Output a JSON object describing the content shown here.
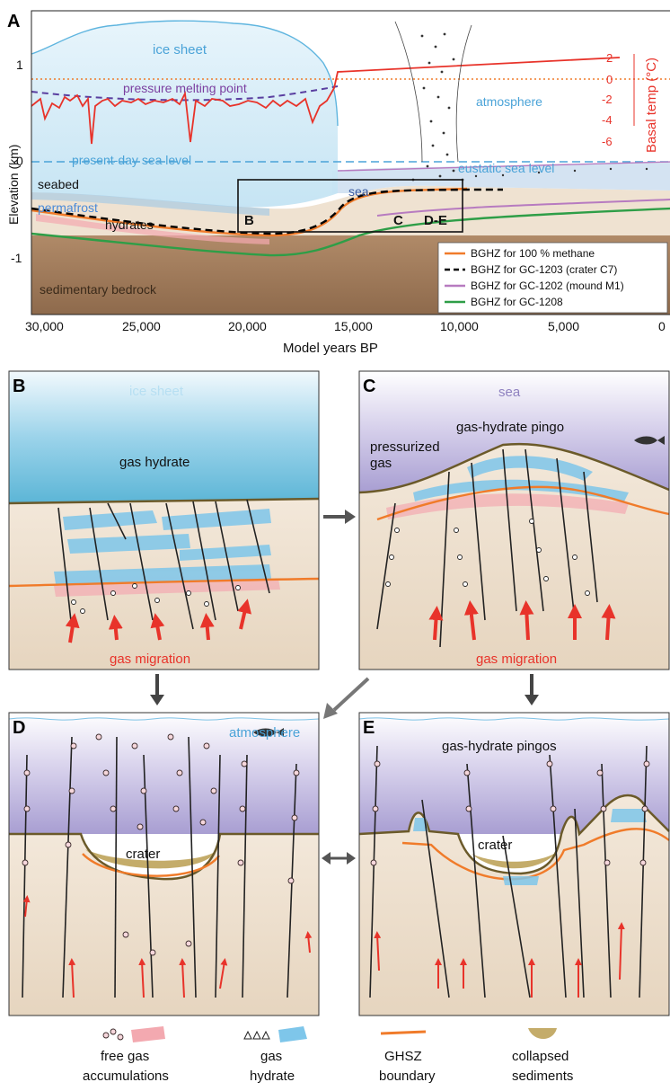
{
  "panel_a": {
    "letter": "A",
    "labels": {
      "ice_sheet": "ice sheet",
      "pressure_melting_point": "pressure melting point",
      "atmosphere": "atmosphere",
      "present_day_sea_level": "present-day sea level",
      "eustatic_sea_level": "eustatic sea level",
      "seabed": "seabed",
      "sea": "sea",
      "permafrost": "permafrost",
      "hydrates": "hydrates",
      "sedimentary_bedrock": "sedimentary bedrock",
      "box_b": "B",
      "box_c": "C",
      "box_de": "D-E"
    },
    "y_axis_title": "Elevation (km)",
    "y_ticks": [
      "1",
      "0",
      "-1"
    ],
    "right_axis_title": "Basal temp (°C)",
    "right_ticks": [
      "2",
      "0",
      "-2",
      "-4",
      "-6"
    ],
    "x_axis_title": "Model years BP",
    "x_ticks": [
      "30,000",
      "25,000",
      "20,000",
      "15,000",
      "10,000",
      "5,000",
      "0"
    ],
    "legend": [
      {
        "label": "BGHZ for 100 % methane",
        "color": "#f07b2a",
        "style": "solid"
      },
      {
        "label": "BGHZ for GC-1203 (crater C7)",
        "color": "#000000",
        "style": "dashed"
      },
      {
        "label": "BGHZ for GC-1202 (mound M1)",
        "color": "#b77bc0",
        "style": "solid"
      },
      {
        "label": "BGHZ for GC-1208",
        "color": "#2e9e47",
        "style": "solid"
      }
    ]
  },
  "panel_b": {
    "letter": "B",
    "ice_sheet": "ice sheet",
    "gas_hydrate": "gas hydrate",
    "gas_migration": "gas migration"
  },
  "panel_c": {
    "letter": "C",
    "sea": "sea",
    "pingo": "gas-hydrate pingo",
    "pressurized_line1": "pressurized",
    "pressurized_line2": "gas",
    "gas_migration": "gas migration"
  },
  "panel_d": {
    "letter": "D",
    "atmosphere": "atmosphere",
    "crater": "crater"
  },
  "panel_e": {
    "letter": "E",
    "pingos": "gas-hydrate pingos",
    "crater": "crater"
  },
  "key": [
    {
      "line1": "free gas",
      "line2": "accumulations"
    },
    {
      "line1": "gas",
      "line2": "hydrate"
    },
    {
      "line1": "GHSZ",
      "line2": "boundary"
    },
    {
      "line1": "collapsed",
      "line2": "sediments"
    }
  ],
  "colors": {
    "temperature": "#e8332a",
    "pmp": "#7b3fa0",
    "sea_level": "#4aa3d8",
    "sediment": "#efe2d1",
    "bedrock": "#a0785a",
    "ice": "#bfe0f2",
    "sea_violet": "#bdb2dd",
    "gas_red": "#e8332a",
    "ghsz": "#f07b2a"
  }
}
